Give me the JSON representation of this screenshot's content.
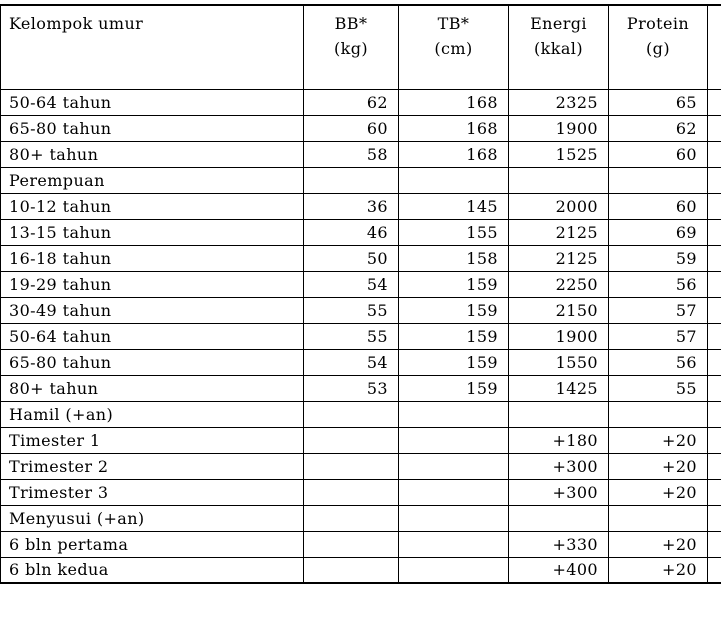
{
  "table": {
    "headers": [
      {
        "title": "Kelompok umur",
        "sub": ""
      },
      {
        "title": "BB*",
        "sub": "(kg)"
      },
      {
        "title": "TB*",
        "sub": "(cm)"
      },
      {
        "title": "Energi",
        "sub": "(kkal)"
      },
      {
        "title": "Protein",
        "sub": "(g)"
      }
    ],
    "rows": [
      [
        "50-64 tahun",
        "62",
        "168",
        "2325",
        "65"
      ],
      [
        "65-80 tahun",
        "60",
        "168",
        "1900",
        "62"
      ],
      [
        "80+ tahun",
        "58",
        "168",
        "1525",
        "60"
      ],
      [
        "Perempuan",
        "",
        "",
        "",
        ""
      ],
      [
        "10-12 tahun",
        "36",
        "145",
        "2000",
        "60"
      ],
      [
        "13-15 tahun",
        "46",
        "155",
        "2125",
        "69"
      ],
      [
        "16-18 tahun",
        "50",
        "158",
        "2125",
        "59"
      ],
      [
        "19-29 tahun",
        "54",
        "159",
        "2250",
        "56"
      ],
      [
        "30-49 tahun",
        "55",
        "159",
        "2150",
        "57"
      ],
      [
        "50-64 tahun",
        "55",
        "159",
        "1900",
        "57"
      ],
      [
        "65-80 tahun",
        "54",
        "159",
        "1550",
        "56"
      ],
      [
        "80+ tahun",
        "53",
        "159",
        "1425",
        "55"
      ],
      [
        "Hamil (+an)",
        "",
        "",
        "",
        ""
      ],
      [
        "Timester 1",
        "",
        "",
        "+180",
        "+20"
      ],
      [
        "Trimester 2",
        "",
        "",
        "+300",
        "+20"
      ],
      [
        "Trimester 3",
        "",
        "",
        "+300",
        "+20"
      ],
      [
        "Menyusui (+an)",
        "",
        "",
        "",
        ""
      ],
      [
        "6 bln pertama",
        "",
        "",
        "+330",
        "+20"
      ],
      [
        "6 bln kedua",
        "",
        "",
        "+400",
        "+20"
      ]
    ]
  }
}
